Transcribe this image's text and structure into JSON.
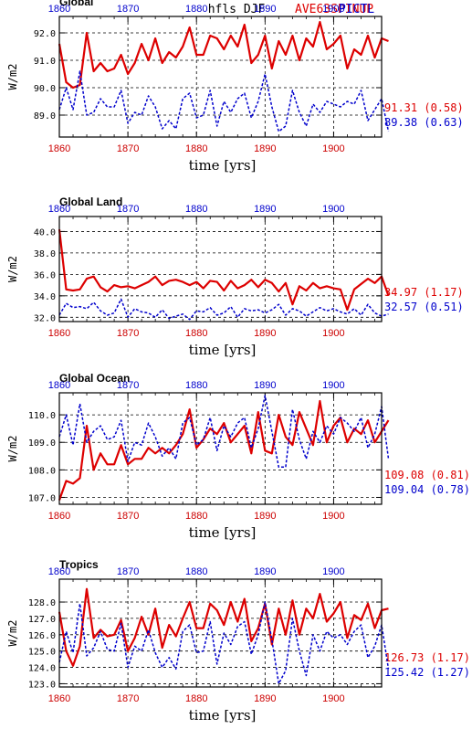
{
  "header": {
    "title": "hfls DJF",
    "legend_red": "AVE63SPINUP",
    "legend_blue": "PICTL"
  },
  "colors": {
    "red": "#dd0000",
    "blue": "#0000cc"
  },
  "chart_data": [
    {
      "type": "line",
      "title": "Global",
      "xlabel": "time [yrs]",
      "ylabel": "W/m2",
      "xlim": [
        1860,
        1907
      ],
      "ylim": [
        88.2,
        92.6
      ],
      "yticks": [
        89.0,
        90.0,
        91.0,
        92.0
      ],
      "xticks": [
        1860,
        1870,
        1880,
        1890,
        1900
      ],
      "grid": true,
      "series": [
        {
          "name": "AVE63SPINUP",
          "color": "red",
          "annotation": "91.31 (0.58)",
          "values": [
            91.6,
            90.2,
            90.0,
            90.1,
            92.0,
            90.6,
            90.9,
            90.6,
            90.7,
            91.2,
            90.5,
            90.9,
            91.6,
            91.0,
            91.8,
            90.9,
            91.3,
            91.1,
            91.5,
            92.2,
            91.2,
            91.2,
            91.9,
            91.8,
            91.4,
            91.9,
            91.5,
            92.3,
            90.9,
            91.2,
            91.9,
            90.7,
            91.7,
            91.2,
            91.9,
            91.0,
            91.8,
            91.5,
            92.4,
            91.4,
            91.6,
            91.9,
            90.7,
            91.4,
            91.2,
            91.9,
            91.1,
            91.8,
            91.7
          ]
        },
        {
          "name": "PICTL",
          "color": "blue",
          "annotation": "89.38 (0.63)",
          "values": [
            89.2,
            90.0,
            89.2,
            90.6,
            89.0,
            89.1,
            89.6,
            89.3,
            89.3,
            89.9,
            88.7,
            89.1,
            89.0,
            89.7,
            89.3,
            88.5,
            88.8,
            88.5,
            89.6,
            89.8,
            88.9,
            89.0,
            89.9,
            88.6,
            89.5,
            89.1,
            89.6,
            89.8,
            88.9,
            89.5,
            90.5,
            89.3,
            88.4,
            88.6,
            89.9,
            89.1,
            88.6,
            89.4,
            89.1,
            89.5,
            89.4,
            89.3,
            89.5,
            89.4,
            89.9,
            88.8,
            89.2,
            89.6,
            88.4
          ]
        }
      ]
    },
    {
      "type": "line",
      "title": "Global Land",
      "xlabel": "time [yrs]",
      "ylabel": "W/m2",
      "xlim": [
        1860,
        1907
      ],
      "ylim": [
        31.6,
        41.4
      ],
      "yticks": [
        32.0,
        34.0,
        36.0,
        38.0,
        40.0
      ],
      "xticks": [
        1860,
        1870,
        1880,
        1890,
        1900
      ],
      "grid": true,
      "series": [
        {
          "name": "AVE63SPINUP",
          "color": "red",
          "annotation": "34.97 (1.17)",
          "values": [
            40.2,
            34.6,
            34.5,
            34.6,
            35.6,
            35.8,
            34.8,
            34.4,
            35.0,
            34.8,
            34.9,
            34.7,
            35.0,
            35.3,
            35.8,
            35.0,
            35.4,
            35.5,
            35.3,
            35.0,
            35.3,
            34.7,
            35.4,
            35.3,
            34.5,
            35.4,
            34.7,
            35.0,
            35.5,
            34.8,
            35.5,
            35.2,
            34.4,
            35.2,
            33.2,
            34.9,
            34.5,
            35.2,
            34.7,
            34.9,
            34.7,
            34.6,
            32.7,
            34.6,
            35.1,
            35.6,
            35.2,
            35.8,
            34.0
          ]
        },
        {
          "name": "PICTL",
          "color": "blue",
          "annotation": "32.57 (0.51)",
          "values": [
            32.2,
            33.3,
            32.9,
            33.0,
            32.8,
            33.4,
            32.6,
            32.2,
            32.4,
            33.7,
            32.0,
            32.8,
            32.5,
            32.4,
            32.0,
            32.7,
            31.9,
            32.1,
            32.3,
            31.8,
            32.6,
            32.5,
            32.9,
            32.2,
            32.4,
            33.0,
            32.0,
            32.8,
            32.6,
            32.7,
            32.4,
            32.7,
            33.2,
            32.2,
            32.8,
            32.6,
            32.1,
            32.5,
            32.9,
            32.6,
            32.8,
            32.5,
            32.3,
            32.8,
            32.2,
            33.2,
            32.4,
            32.1,
            32.3
          ]
        }
      ]
    },
    {
      "type": "line",
      "title": "Global Ocean",
      "xlabel": "time [yrs]",
      "ylabel": "W/m2",
      "xlim": [
        1860,
        1907
      ],
      "ylim": [
        106.75,
        110.8
      ],
      "yticks": [
        107.0,
        108.0,
        109.0,
        110.0
      ],
      "ytick_labels": [
        "107.0",
        "108.0",
        "109.0",
        "110.0"
      ],
      "xticks": [
        1860,
        1870,
        1880,
        1890,
        1900
      ],
      "grid": true,
      "series": [
        {
          "name": "AVE63SPINUP",
          "color": "red",
          "annotation": "109.08 (0.81)",
          "values": [
            106.9,
            107.6,
            107.5,
            107.7,
            109.6,
            108.0,
            108.6,
            108.2,
            108.2,
            108.9,
            108.2,
            108.4,
            108.4,
            108.8,
            108.6,
            108.8,
            108.6,
            108.9,
            109.3,
            110.2,
            108.8,
            109.1,
            109.5,
            109.3,
            109.7,
            109.0,
            109.3,
            109.6,
            108.6,
            110.1,
            108.7,
            108.6,
            110.0,
            109.2,
            108.9,
            110.1,
            109.5,
            108.9,
            110.5,
            109.0,
            109.6,
            109.9,
            109.0,
            109.5,
            109.3,
            109.8,
            109.0,
            109.4,
            109.8
          ]
        },
        {
          "name": "PICTL",
          "color": "blue",
          "annotation": "109.04 (0.78)",
          "values": [
            109.2,
            110.0,
            108.9,
            110.4,
            109.0,
            109.4,
            109.6,
            109.1,
            109.2,
            109.8,
            108.3,
            109.0,
            108.9,
            109.7,
            109.2,
            108.5,
            108.8,
            108.4,
            109.7,
            109.9,
            108.9,
            109.1,
            109.9,
            108.7,
            109.6,
            109.2,
            109.7,
            109.9,
            108.8,
            109.5,
            110.7,
            109.4,
            108.1,
            108.1,
            110.2,
            109.1,
            108.4,
            109.4,
            109.0,
            109.6,
            109.3,
            109.9,
            109.7,
            109.4,
            109.9,
            108.8,
            109.3,
            110.3,
            108.4
          ]
        }
      ]
    },
    {
      "type": "line",
      "title": "Tropics",
      "xlabel": "time [yrs]",
      "ylabel": "W/m2",
      "xlim": [
        1860,
        1907
      ],
      "ylim": [
        122.8,
        129.4
      ],
      "yticks": [
        123.0,
        124.0,
        125.0,
        126.0,
        127.0,
        128.0
      ],
      "xticks": [
        1860,
        1870,
        1880,
        1890,
        1900
      ],
      "grid": true,
      "series": [
        {
          "name": "AVE63SPINUP",
          "color": "red",
          "annotation": "126.73 (1.17)",
          "values": [
            127.4,
            125.0,
            124.1,
            125.3,
            128.8,
            125.8,
            126.3,
            125.9,
            126.0,
            126.9,
            125.0,
            125.8,
            127.1,
            126.0,
            127.6,
            125.2,
            126.6,
            125.9,
            127.0,
            128.0,
            126.4,
            126.4,
            127.9,
            127.5,
            126.6,
            128.0,
            126.8,
            128.2,
            125.6,
            126.4,
            127.9,
            125.4,
            127.6,
            126.0,
            128.1,
            126.0,
            127.6,
            127.0,
            128.5,
            126.8,
            127.3,
            128.0,
            125.8,
            127.2,
            126.9,
            127.9,
            126.4,
            127.5,
            127.6
          ]
        },
        {
          "name": "PICTL",
          "color": "blue",
          "annotation": "125.42 (1.27)",
          "values": [
            124.3,
            126.2,
            124.9,
            127.9,
            124.7,
            125.2,
            126.2,
            125.1,
            125.0,
            126.7,
            124.0,
            125.3,
            125.0,
            126.3,
            124.9,
            124.0,
            124.6,
            123.9,
            126.2,
            126.6,
            124.9,
            125.0,
            126.8,
            124.2,
            126.1,
            125.4,
            126.5,
            126.8,
            124.8,
            126.0,
            128.0,
            125.7,
            123.0,
            123.8,
            127.0,
            125.0,
            123.5,
            126.0,
            125.0,
            126.2,
            125.8,
            126.0,
            125.4,
            126.2,
            126.6,
            124.6,
            125.3,
            126.6,
            123.9
          ]
        }
      ]
    }
  ]
}
